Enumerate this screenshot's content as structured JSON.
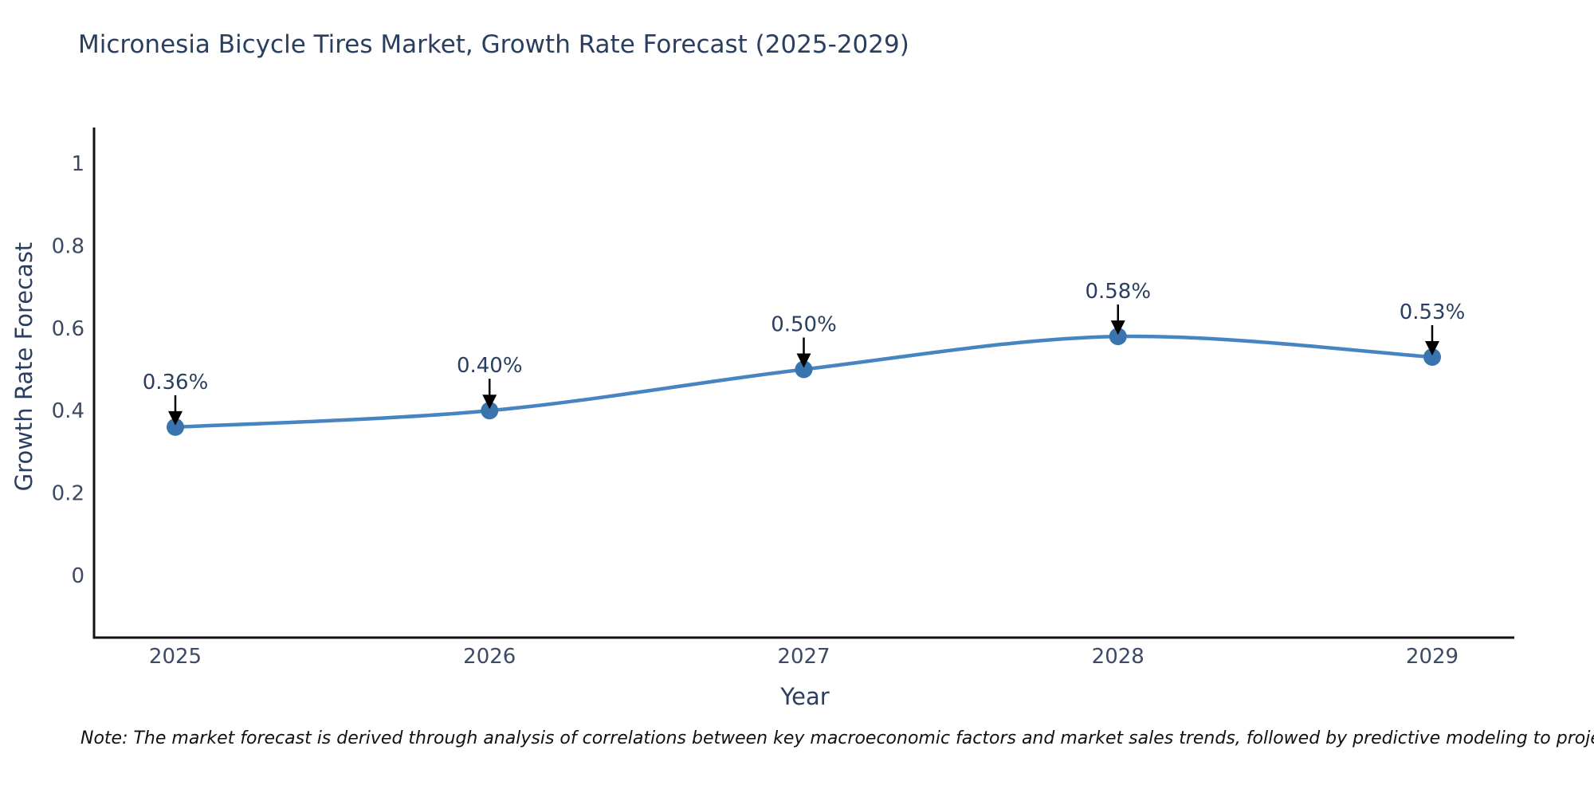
{
  "title": {
    "text": "Micronesia Bicycle Tires Market, Growth Rate Forecast (2025-2029)"
  },
  "note": {
    "text": "Note: The market forecast is derived through analysis of correlations between key macroeconomic factors and market sales trends, followed by predictive modeling to project future sales"
  },
  "chart_data": {
    "type": "line",
    "x": [
      2025,
      2026,
      2027,
      2028,
      2029
    ],
    "xtick_labels": [
      "2025",
      "2026",
      "2027",
      "2028",
      "2029"
    ],
    "series": [
      {
        "name": "Growth Rate Forecast",
        "values": [
          0.36,
          0.4,
          0.5,
          0.58,
          0.53
        ]
      }
    ],
    "point_labels": [
      "0.36%",
      "0.40%",
      "0.50%",
      "0.58%",
      "0.53%"
    ],
    "title": "Micronesia Bicycle Tires Market, Growth Rate Forecast (2025-2029)",
    "xlabel": "Year",
    "ylabel": "Growth Rate Forecast",
    "ylim": [
      0,
      1
    ],
    "yticks": [
      0,
      0.2,
      0.4,
      0.6,
      0.8,
      1
    ],
    "ytick_labels": [
      "0",
      "0.2",
      "0.4",
      "0.6",
      "0.8",
      "1"
    ],
    "grid": false,
    "legend": "none",
    "line_shape": "spline",
    "annotation_arrows": true,
    "colors": {
      "line": "#4685c1",
      "marker": "#3a74ae",
      "axis": "#111111",
      "arrow": "#000000",
      "text": "#2a3f5f"
    }
  }
}
